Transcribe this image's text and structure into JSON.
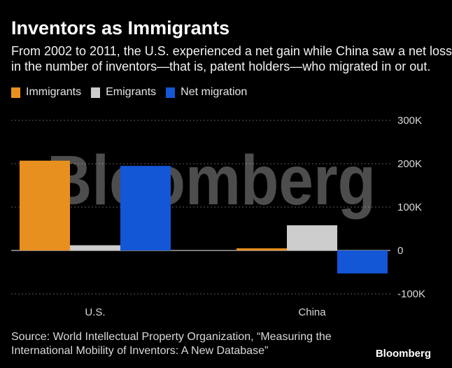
{
  "header": {
    "title": "Inventors as Immigrants",
    "subtitle_lines": [
      "From 2002 to 2011, the U.S. experienced a net gain while China saw a net loss",
      "in the number of inventors—that is, patent holders—who migrated in or out."
    ]
  },
  "footer": {
    "source_lines": [
      "Source: World Intellectual Property Organization, “Measuring the",
      "International Mobility of Inventors: A New Database”"
    ],
    "credit": "Bloomberg"
  },
  "watermark": "Bloomberg",
  "colors": {
    "background": "#000000",
    "immigrants": "#e8901f",
    "emigrants": "#cccccc",
    "net_migration": "#1356d6",
    "gridline": "#5a5a5a",
    "zero_line": "#bfbfbf"
  },
  "chart_data": {
    "type": "bar",
    "categories": [
      "U.S.",
      "China"
    ],
    "series": [
      {
        "name": "Immigrants",
        "values": [
          207000,
          5000
        ]
      },
      {
        "name": "Emigrants",
        "values": [
          12000,
          58000
        ]
      },
      {
        "name": "Net migration",
        "values": [
          195000,
          -53000
        ]
      }
    ],
    "ylim": [
      -100000,
      300000
    ],
    "yticks": [
      300000,
      200000,
      100000,
      0,
      -100000
    ],
    "ytick_labels": [
      "300K",
      "200K",
      "100K",
      "0",
      "-100K"
    ],
    "grid": true,
    "legend": "top-left",
    "y_axis_side": "right"
  }
}
